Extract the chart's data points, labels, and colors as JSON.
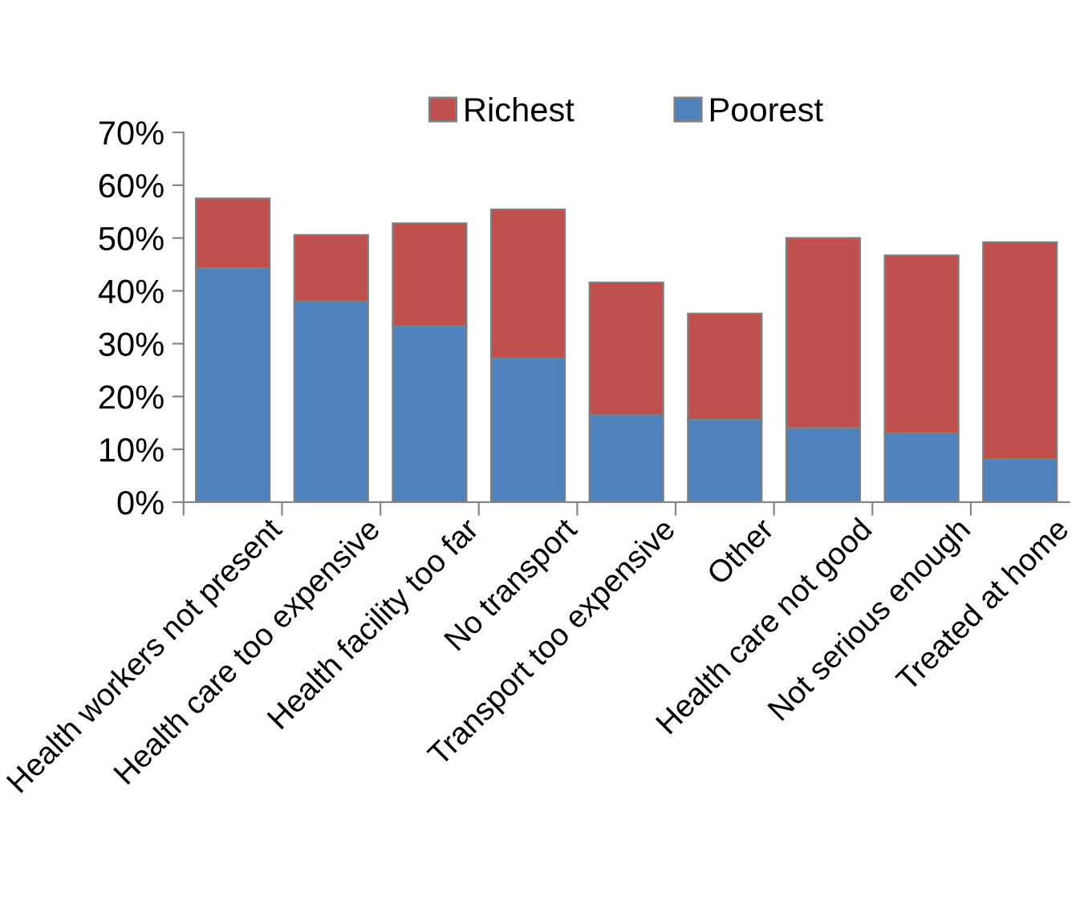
{
  "chart_data": {
    "type": "bar",
    "stacked": true,
    "categories": [
      "Health workers not present",
      "Health care too expensive",
      "Health facility too far",
      "No transport",
      "Transport too expensive",
      "Other",
      "Health care not good",
      "Not serious enough",
      "Treated at home"
    ],
    "series": [
      {
        "name": "Poorest",
        "color": "#4f81bd",
        "values": [
          44.3,
          38.0,
          33.3,
          27.2,
          16.5,
          15.6,
          14.0,
          13.0,
          8.1
        ]
      },
      {
        "name": "Richest",
        "color": "#c0504d",
        "values": [
          13.2,
          12.6,
          19.5,
          28.2,
          25.1,
          20.1,
          36.0,
          33.7,
          41.1
        ]
      }
    ],
    "ylim": [
      0,
      70
    ],
    "yticks": [
      {
        "value": 0,
        "label": "0%"
      },
      {
        "value": 10,
        "label": "10%"
      },
      {
        "value": 20,
        "label": "20%"
      },
      {
        "value": 30,
        "label": "30%"
      },
      {
        "value": 40,
        "label": "40%"
      },
      {
        "value": 50,
        "label": "50%"
      },
      {
        "value": 60,
        "label": "60%"
      },
      {
        "value": 70,
        "label": "70%"
      }
    ],
    "legend": "top",
    "grid": false
  }
}
